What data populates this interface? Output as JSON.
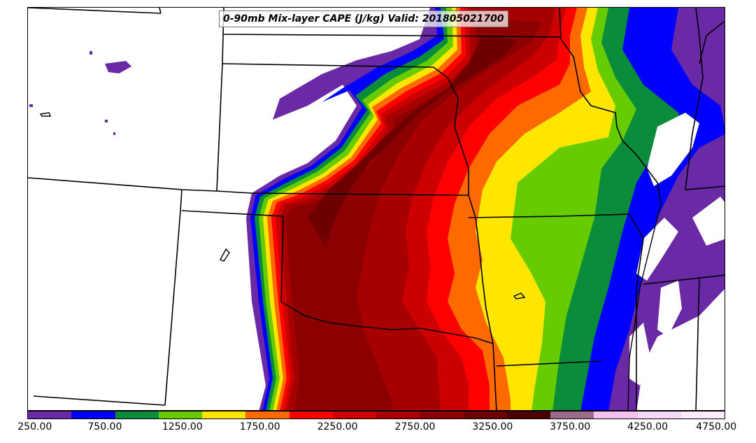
{
  "title": "0-90mb Mix-layer CAPE (J/kg) Valid: 201805021700",
  "colorbar": {
    "colors": [
      "#6a2aa6",
      "#0000ff",
      "#0a8c3a",
      "#66cc00",
      "#ffe600",
      "#ff6a00",
      "#ff0000",
      "#cc0000",
      "#a80000",
      "#8c0000",
      "#6e0000",
      "#4a0000",
      "#9e6a8a",
      "#f5c0f0",
      "#f8d8f8",
      "#fcecfc"
    ],
    "labels": [
      "250.00",
      "750.00",
      "1250.00",
      "1750.00",
      "2250.00",
      "2750.00",
      "3250.00",
      "3750.00",
      "4250.00",
      "4750.00"
    ],
    "min": 250,
    "max": 4750
  }
}
